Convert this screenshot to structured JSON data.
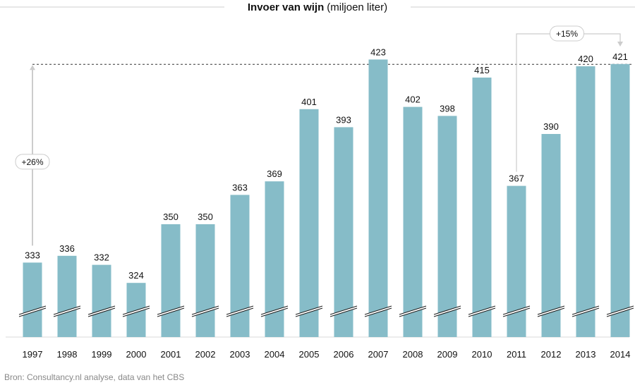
{
  "chart_data": {
    "type": "bar",
    "title": "Invoer van wijn",
    "subtitle": "(miljoen liter)",
    "xlabel": "",
    "ylabel": "",
    "categories": [
      "1997",
      "1998",
      "1999",
      "2000",
      "2001",
      "2002",
      "2003",
      "2004",
      "2005",
      "2006",
      "2007",
      "2008",
      "2009",
      "2010",
      "2011",
      "2012",
      "2013",
      "2014"
    ],
    "values": [
      333,
      336,
      332,
      324,
      350,
      350,
      363,
      369,
      401,
      393,
      423,
      402,
      398,
      415,
      367,
      390,
      420,
      421
    ],
    "axis_break": true,
    "annotations": [
      {
        "label": "+26%",
        "from": "1997",
        "reference_value": 421
      },
      {
        "label": "+15%",
        "from": "2011",
        "to": "2014"
      }
    ],
    "grid": false,
    "legend": "none"
  },
  "colors": {
    "bar": "#86bcc8",
    "text": "#111111",
    "arrow": "#cccccc",
    "dashed": "#333333",
    "source": "#888888"
  },
  "source": "Bron: Consultancy.nl analyse, data van het CBS"
}
